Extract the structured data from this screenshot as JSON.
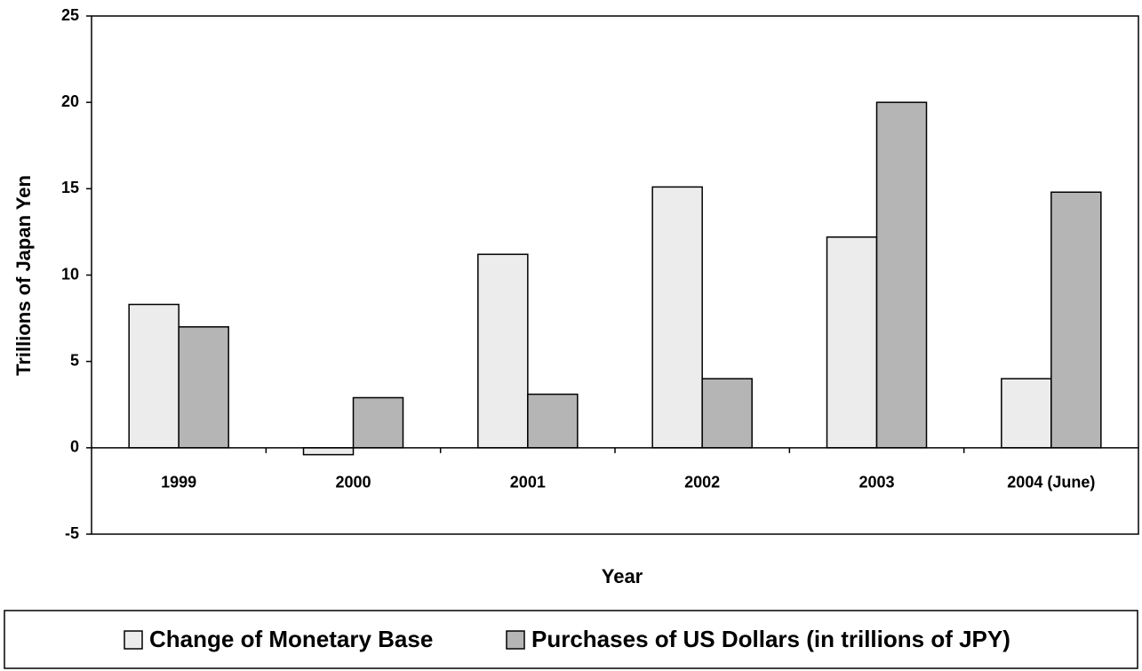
{
  "chart_data": {
    "type": "bar",
    "x_label": "Year",
    "y_label": "Trillions of Japan Yen",
    "categories": [
      "1999",
      "2000",
      "2001",
      "2002",
      "2003",
      "2004 (June)"
    ],
    "series": [
      {
        "name": "Change of Monetary Base",
        "color": "#ececec",
        "values": [
          8.3,
          -0.4,
          11.2,
          15.1,
          12.2,
          4.0
        ]
      },
      {
        "name": "Purchases of US Dollars (in trillions of JPY)",
        "color": "#b5b5b5",
        "values": [
          7.0,
          2.9,
          3.1,
          4.0,
          20.0,
          14.8
        ]
      }
    ],
    "ylim": [
      -5,
      25
    ],
    "yticks": [
      -5,
      0,
      5,
      10,
      15,
      20,
      25
    ],
    "grid": false,
    "legend": "bottom"
  }
}
